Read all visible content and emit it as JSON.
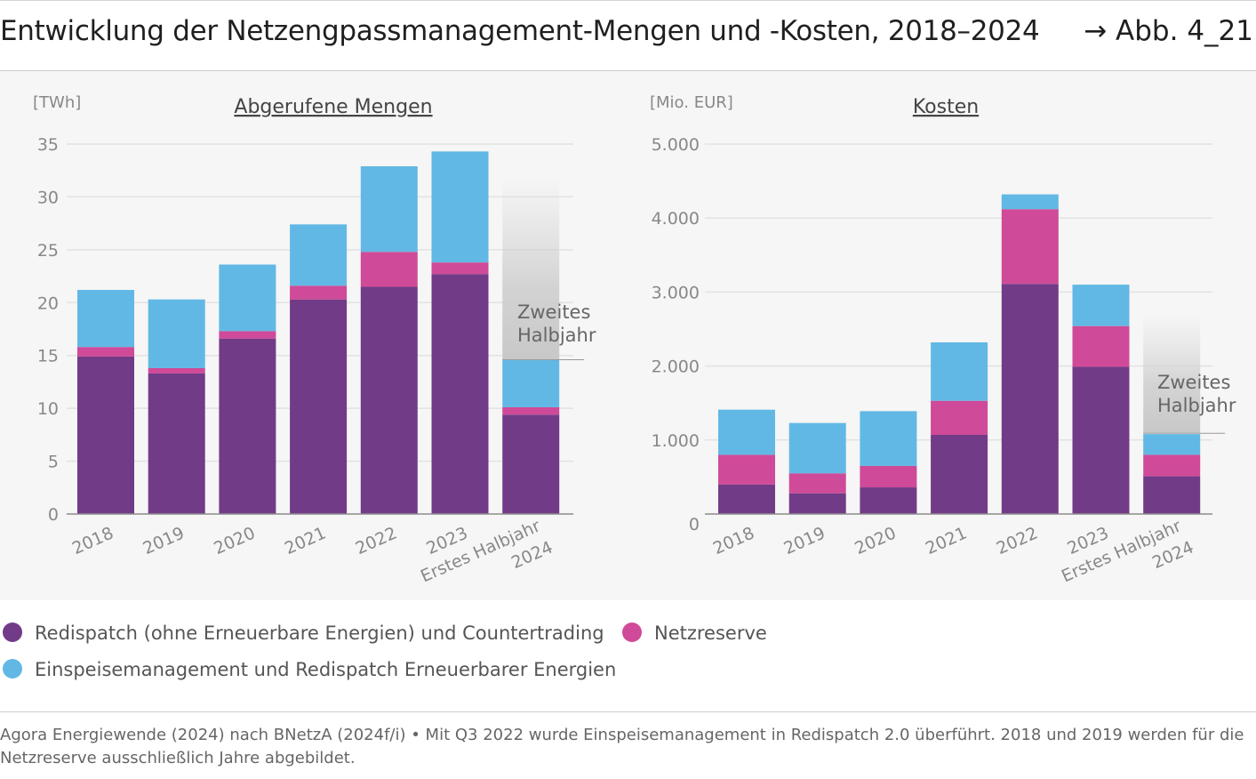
{
  "title": "Entwicklung der Netzengpassmanagement-Mengen und -Kosten, 2018–2024",
  "figure_ref": "→ Abb. 4_21",
  "colors": {
    "redispatch": "#723b87",
    "netzreserve": "#cf4a98",
    "einspeisemanagement": "#62b8e5",
    "axis": "#888888",
    "grid": "#e2e2e2"
  },
  "legend": [
    {
      "key": "redispatch",
      "label": "Redispatch (ohne Erneuerbare Energien) und Countertrading"
    },
    {
      "key": "netzreserve",
      "label": "Netzreserve"
    },
    {
      "key": "einspeisemanagement",
      "label": "Einspeisemanagement und Redispatch Erneuerbarer Energien"
    }
  ],
  "chart_data": [
    {
      "type": "bar",
      "stacked": true,
      "title": "Abgerufene Mengen",
      "ylabel": "[TWh]",
      "ylim": [
        0,
        35
      ],
      "yticks": [
        0,
        5,
        10,
        15,
        20,
        25,
        30,
        35
      ],
      "categories": [
        "2018",
        "2019",
        "2020",
        "2021",
        "2022",
        "2023",
        "Erstes Halbjahr 2024"
      ],
      "series": [
        {
          "name": "Redispatch (ohne Erneuerbare Energien) und Countertrading",
          "color": "#723b87",
          "values": [
            14.9,
            13.3,
            16.6,
            20.3,
            21.5,
            22.7,
            9.4
          ]
        },
        {
          "name": "Netzreserve",
          "color": "#cf4a98",
          "values": [
            0.9,
            0.5,
            0.7,
            1.3,
            3.3,
            1.1,
            0.7
          ]
        },
        {
          "name": "Einspeisemanagement und Redispatch Erneuerbarer Energien",
          "color": "#62b8e5",
          "values": [
            5.4,
            6.5,
            6.3,
            5.8,
            8.1,
            10.5,
            4.5
          ]
        }
      ],
      "annotation": "Zweites Halbjahr",
      "annotation_range": [
        14.6,
        32.0
      ],
      "grid": true
    },
    {
      "type": "bar",
      "stacked": true,
      "title": "Kosten",
      "ylabel": "[Mio. EUR]",
      "ylim": [
        0,
        5000
      ],
      "yticks": [
        0,
        1000,
        2000,
        3000,
        4000,
        5000
      ],
      "ytick_labels": [
        "0",
        "1.000",
        "2.000",
        "3.000",
        "4.000",
        "5.000"
      ],
      "categories": [
        "2018",
        "2019",
        "2020",
        "2021",
        "2022",
        "2023",
        "Erstes Halbjahr 2024"
      ],
      "series": [
        {
          "name": "Redispatch (ohne Erneuerbare Energien) und Countertrading",
          "color": "#723b87",
          "values": [
            400,
            280,
            360,
            1070,
            3110,
            1990,
            510
          ]
        },
        {
          "name": "Netzreserve",
          "color": "#cf4a98",
          "values": [
            400,
            270,
            290,
            460,
            1010,
            550,
            290
          ]
        },
        {
          "name": "Einspeisemanagement und Redispatch Erneuerbarer Energien",
          "color": "#62b8e5",
          "values": [
            610,
            680,
            740,
            790,
            200,
            560,
            280
          ]
        }
      ],
      "annotation": "Zweites Halbjahr",
      "annotation_range": [
        1090,
        2700
      ],
      "grid": true
    }
  ],
  "source": "Agora Energiewende (2024) nach BNetzA (2024f/i) • Mit Q3 2022 wurde Einspeisemanagement in Redispatch 2.0 überführt. 2018 und 2019 wer­den für die Netzreserve ausschließlich Jahre abgebildet."
}
